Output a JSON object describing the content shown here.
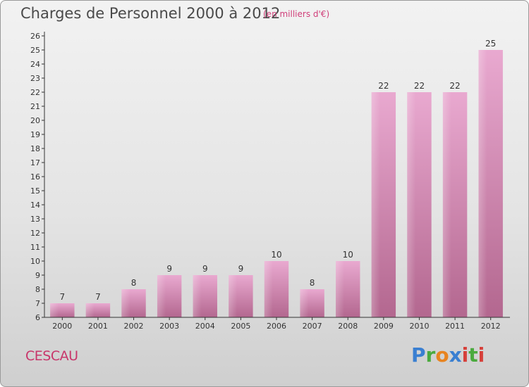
{
  "header": {
    "title": "Charges de Personnel 2000 à 2012",
    "subtitle": "(en milliers d'€)"
  },
  "footer": {
    "commune": "CESCAU",
    "logo_text": "Proxiti",
    "logo_colors": [
      "#3a7fd1",
      "#4aaa3e",
      "#e88420",
      "#3a7fd1",
      "#d6403a",
      "#4aaa3e",
      "#d6403a"
    ]
  },
  "colors": {
    "bar_light": "#e9a9d0",
    "bar_dark": "#b3678f",
    "axis": "#333333",
    "grid_tick": "#333333"
  },
  "chart_data": {
    "type": "bar",
    "title": "Charges de Personnel 2000 à 2012",
    "subtitle": "(en milliers d'€)",
    "categories": [
      "2000",
      "2001",
      "2002",
      "2003",
      "2004",
      "2005",
      "2006",
      "2007",
      "2008",
      "2009",
      "2010",
      "2011",
      "2012"
    ],
    "values": [
      7,
      7,
      8,
      9,
      9,
      9,
      10,
      8,
      10,
      22,
      22,
      22,
      25
    ],
    "ylim": [
      6,
      26
    ],
    "yticks": [
      6,
      7,
      8,
      9,
      10,
      11,
      12,
      13,
      14,
      15,
      16,
      17,
      18,
      19,
      20,
      21,
      22,
      23,
      24,
      25,
      26
    ],
    "grid": false,
    "data_labels": true
  }
}
